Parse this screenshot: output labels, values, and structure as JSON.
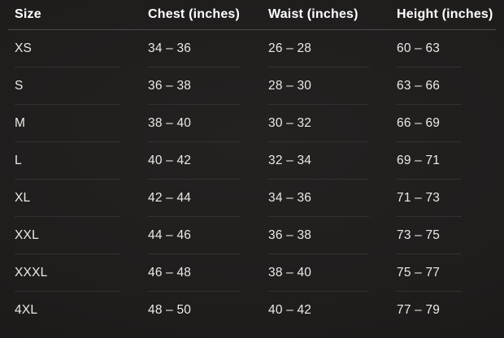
{
  "chart_data": {
    "type": "table",
    "columns": [
      "Size",
      "Chest (inches)",
      "Waist (inches)",
      "Height (inches)"
    ],
    "rows": [
      {
        "size": "XS",
        "chest": "34 – 36",
        "waist": "26 – 28",
        "height": "60 – 63"
      },
      {
        "size": "S",
        "chest": "36 – 38",
        "waist": "28 – 30",
        "height": "63 – 66"
      },
      {
        "size": "M",
        "chest": "38 – 40",
        "waist": "30 – 32",
        "height": "66 – 69"
      },
      {
        "size": "L",
        "chest": "40 – 42",
        "waist": "32 – 34",
        "height": "69 – 71"
      },
      {
        "size": "XL",
        "chest": "42 – 44",
        "waist": "34 – 36",
        "height": "71 – 73"
      },
      {
        "size": "XXL",
        "chest": "44 – 46",
        "waist": "36 – 38",
        "height": "73 – 75"
      },
      {
        "size": "XXXL",
        "chest": "46 – 48",
        "waist": "38 – 40",
        "height": "75 – 77"
      },
      {
        "size": "4XL",
        "chest": "48 – 50",
        "waist": "40 – 42",
        "height": "77 – 79"
      }
    ],
    "layout": {
      "header_divider": true,
      "row_dividers": true,
      "grid": "off",
      "legend": "none"
    }
  },
  "colors": {
    "background": "#1e1c1b",
    "header_text": "#ffffff",
    "cell_text": "#eceae7",
    "header_divider": "#4c4947",
    "row_divider": "#343130"
  }
}
